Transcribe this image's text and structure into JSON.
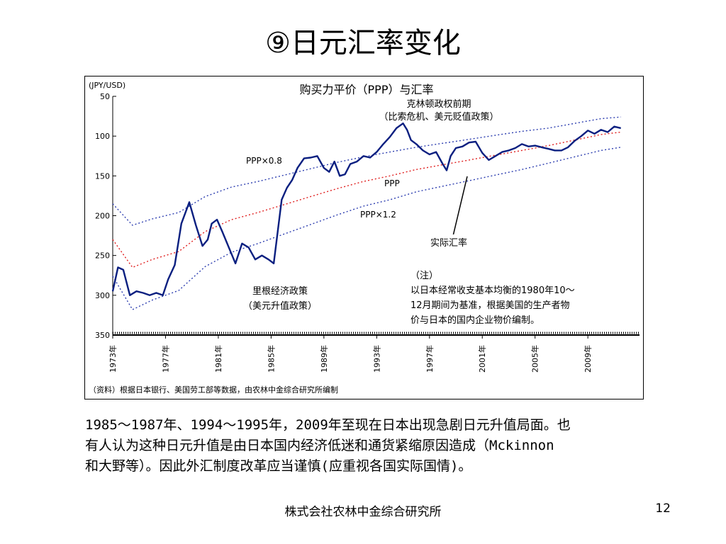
{
  "slide": {
    "title": "⑨日元汇率变化",
    "body_lines": [
      "1985～1987年、1994～1995年，2009年至现在日本出现急剧日元升值局面。也",
      "有人认为这种日元升值是由日本国内经济低迷和通货紧缩原因造成（Mckinnon",
      "和大野等）。因此外汇制度改革应当谨慎(应重视各国实际国情)。"
    ],
    "footer_org": "株式会社农林中金综合研究所",
    "page_number": "12"
  },
  "chart_data": {
    "type": "line",
    "title": "购买力平价（PPP）与汇率",
    "y_unit_label": "(JPY/USD)",
    "y_axis_inverted": true,
    "ylim": [
      50,
      350
    ],
    "yticks": [
      50,
      100,
      150,
      200,
      250,
      300,
      350
    ],
    "xlim": [
      1973.0,
      2012.0
    ],
    "xticks": [
      1973,
      1977,
      1981,
      1985,
      1989,
      1993,
      1997,
      2001,
      2005,
      2009
    ],
    "xtick_labels": [
      "1973年",
      "1977年",
      "1981年",
      "1985年",
      "1989年",
      "1993年",
      "1997年",
      "2001年",
      "2005年",
      "2009年"
    ],
    "grid": false,
    "series": [
      {
        "name": "实际汇率",
        "style": "solid",
        "color": "#0a1f80",
        "x": [
          1973.0,
          1973.4,
          1973.8,
          1974.3,
          1974.8,
          1975.3,
          1975.8,
          1976.3,
          1976.8,
          1977.2,
          1977.7,
          1978.2,
          1978.8,
          1979.3,
          1979.8,
          1980.2,
          1980.5,
          1980.9,
          1981.3,
          1981.8,
          1982.3,
          1982.8,
          1983.3,
          1983.8,
          1984.3,
          1984.8,
          1985.2,
          1985.5,
          1985.8,
          1986.2,
          1986.6,
          1987.0,
          1987.5,
          1988.0,
          1988.5,
          1989.0,
          1989.4,
          1989.8,
          1990.2,
          1990.6,
          1991.0,
          1991.5,
          1992.0,
          1992.5,
          1993.0,
          1993.5,
          1994.0,
          1994.5,
          1995.0,
          1995.3,
          1995.6,
          1996.0,
          1996.5,
          1997.0,
          1997.5,
          1998.0,
          1998.3,
          1998.6,
          1999.0,
          1999.5,
          2000.0,
          2000.5,
          2001.0,
          2001.5,
          2002.0,
          2002.5,
          2003.0,
          2003.5,
          2004.0,
          2004.5,
          2005.0,
          2005.5,
          2006.0,
          2006.5,
          2007.0,
          2007.5,
          2008.0,
          2008.5,
          2009.0,
          2009.5,
          2010.0,
          2010.5,
          2011.0,
          2011.5
        ],
        "values": [
          295,
          265,
          268,
          300,
          295,
          297,
          300,
          297,
          300,
          280,
          262,
          210,
          183,
          212,
          238,
          230,
          210,
          205,
          220,
          240,
          260,
          235,
          240,
          255,
          250,
          255,
          260,
          220,
          180,
          165,
          155,
          140,
          128,
          127,
          125,
          140,
          145,
          132,
          150,
          148,
          135,
          132,
          125,
          127,
          120,
          110,
          101,
          90,
          84,
          92,
          105,
          110,
          118,
          123,
          120,
          135,
          143,
          125,
          115,
          113,
          108,
          107,
          121,
          130,
          125,
          120,
          118,
          115,
          110,
          113,
          112,
          114,
          116,
          118,
          118,
          114,
          106,
          100,
          93,
          97,
          92,
          95,
          88,
          90
        ]
      },
      {
        "name": "PPP",
        "style": "dotted",
        "color": "#e02020",
        "x": [
          1973.0,
          1974.5,
          1976.0,
          1978.0,
          1980.0,
          1982.0,
          1984.0,
          1986.0,
          1988.0,
          1990.0,
          1992.0,
          1994.0,
          1996.0,
          1998.0,
          2000.0,
          2002.0,
          2004.0,
          2006.0,
          2008.0,
          2010.0,
          2011.5
        ],
        "values": [
          230,
          265,
          255,
          245,
          220,
          205,
          196,
          186,
          176,
          166,
          157,
          150,
          142,
          136,
          130,
          124,
          118,
          112,
          105,
          98,
          95
        ]
      },
      {
        "name": "PPP×0.8",
        "style": "dotted",
        "color": "#2e3fb0",
        "x": [
          1973.0,
          1974.5,
          1976.0,
          1978.0,
          1980.0,
          1982.0,
          1984.0,
          1986.0,
          1988.0,
          1990.0,
          1992.0,
          1994.0,
          1996.0,
          1998.0,
          2000.0,
          2002.0,
          2004.0,
          2006.0,
          2008.0,
          2010.0,
          2011.5
        ],
        "values": [
          185,
          212,
          204,
          196,
          176,
          164,
          157,
          149,
          141,
          133,
          126,
          120,
          114,
          109,
          104,
          99,
          94,
          90,
          84,
          78,
          76
        ]
      },
      {
        "name": "PPP×1.2",
        "style": "dotted",
        "color": "#2e3fb0",
        "x": [
          1973.0,
          1974.5,
          1976.0,
          1978.0,
          1980.0,
          1982.0,
          1984.0,
          1986.0,
          1988.0,
          1990.0,
          1992.0,
          1994.0,
          1996.0,
          1998.0,
          2000.0,
          2002.0,
          2004.0,
          2006.0,
          2008.0,
          2010.0,
          2011.5
        ],
        "values": [
          276,
          318,
          306,
          294,
          264,
          246,
          235,
          223,
          211,
          199,
          188,
          180,
          170,
          163,
          156,
          149,
          142,
          134,
          126,
          118,
          114
        ]
      }
    ],
    "annotations": {
      "clinton": [
        "克林顿政权前期",
        "（比索危机、美元贬值政策）"
      ],
      "reagan": [
        "里根经济政策",
        "（美元升值政策）"
      ],
      "ppp08": "PPP×0.8",
      "ppp": "PPP",
      "ppp12": "PPP×1.2",
      "actual": "实际汇率",
      "note": [
        "（注）",
        "以日本经常收支基本均衡的1980年10～",
        "12月期间为基准，根据美国的生产者物",
        "价与日本的国内企业物价编制。"
      ],
      "source": "（资料）根据日本银行、美国劳工部等数据，由农林中金综合研究所编制"
    }
  }
}
